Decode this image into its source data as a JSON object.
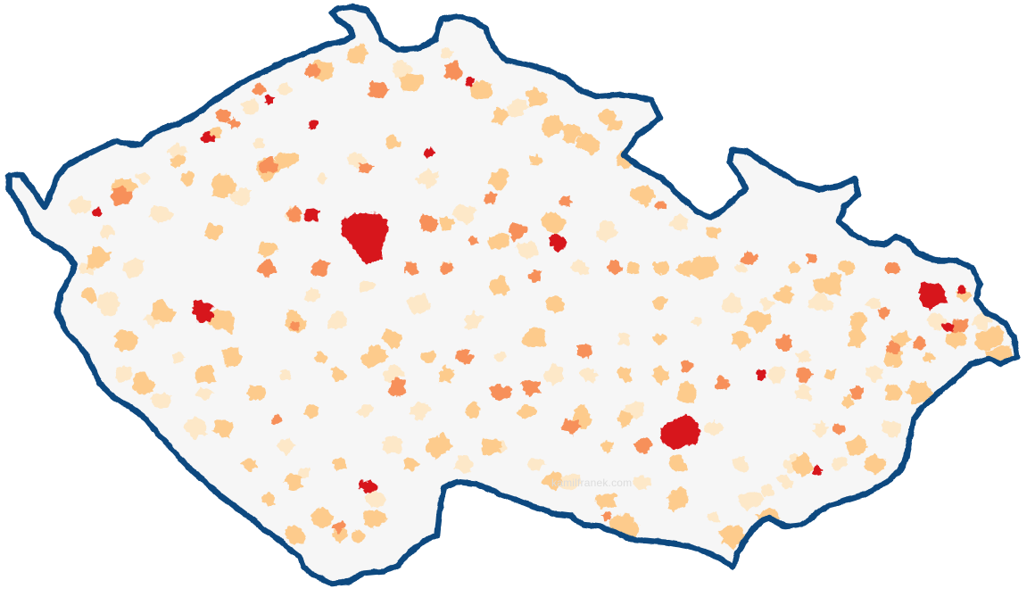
{
  "map": {
    "country_fill": "#f6f6f6",
    "border_color": "#0f4880",
    "class_colors": [
      "#fde8c8",
      "#fdcb8c",
      "#f7905a",
      "#d7191c"
    ]
  },
  "watermark": {
    "text": "kamilfranek.com"
  }
}
